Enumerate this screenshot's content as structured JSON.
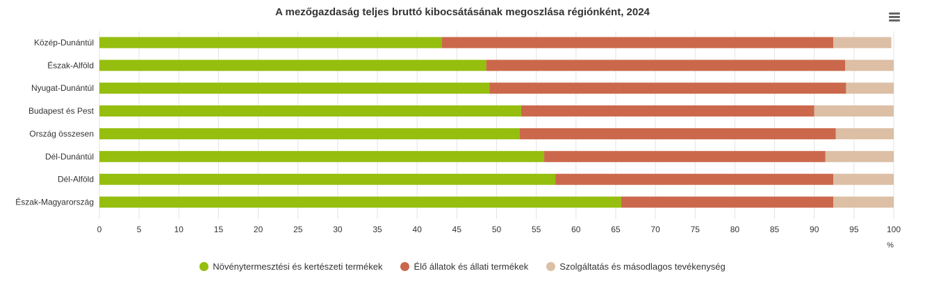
{
  "title": "A mezőgazdaság teljes bruttó kibocsátásának megoszlása régiónként, 2024",
  "menu_icon": "hamburger-menu-icon",
  "chart_data": {
    "type": "bar",
    "orientation": "horizontal",
    "stacked": "percent",
    "title": "A mezőgazdaság teljes bruttó kibocsátásának megoszlása régiónként, 2024",
    "categories": [
      "Közép-Dunántúl",
      "Észak-Alföld",
      "Nyugat-Dunántúl",
      "Budapest és Pest",
      "Ország összesen",
      "Dél-Dunántúl",
      "Dél-Alföld",
      "Észak-Magyarország"
    ],
    "series": [
      {
        "name": "Növénytermesztési és kertészeti termékek",
        "color": "#95be0f",
        "values": [
          43.1,
          48.7,
          49.1,
          53.1,
          52.9,
          56.0,
          57.4,
          65.7
        ]
      },
      {
        "name": "Élő állatok és állati termékek",
        "color": "#cb684c",
        "values": [
          49.3,
          45.2,
          44.9,
          36.9,
          39.8,
          35.4,
          35.0,
          26.7
        ]
      },
      {
        "name": "Szolgáltatás és másodlagos tevékenység",
        "color": "#dcbfa5",
        "values": [
          7.3,
          6.1,
          6.0,
          10.0,
          7.3,
          8.6,
          7.6,
          7.6
        ]
      }
    ],
    "xlim": [
      0,
      100
    ],
    "xticks": [
      "0",
      "5",
      "10",
      "15",
      "20",
      "25",
      "30",
      "35",
      "40",
      "45",
      "50",
      "55",
      "60",
      "65",
      "70",
      "75",
      "80",
      "85",
      "90",
      "95",
      "100"
    ],
    "xlabel": "%",
    "grid": true,
    "legend": "bottom"
  }
}
